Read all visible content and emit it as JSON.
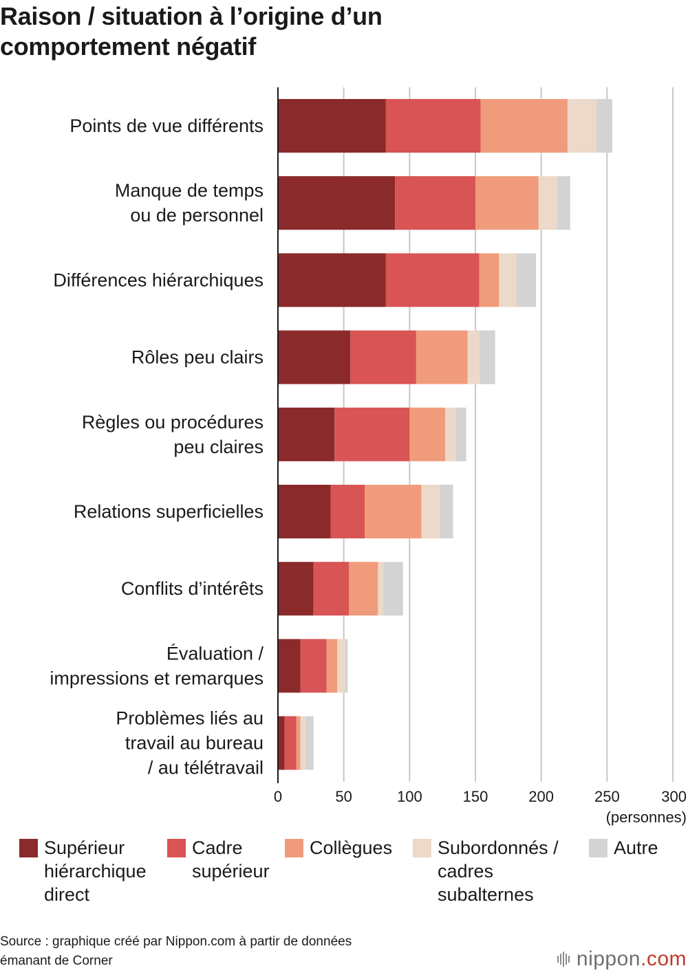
{
  "title": {
    "line1": "Raison / situation à l’origine d’un",
    "line2": "comportement négatif"
  },
  "colors": {
    "superieur_direct": "#8b2a2a",
    "cadre_superieur": "#d85455",
    "collegues": "#f09c7c",
    "subordonnes": "#ecd9ca",
    "autre": "#d3d3d3",
    "gridline": "#c8c8c8",
    "axis": "#1a1a1a"
  },
  "chart_data": {
    "type": "bar",
    "orientation": "horizontal",
    "stacked": true,
    "categories": [
      [
        "Points de vue différents"
      ],
      [
        "Manque de temps",
        "ou de personnel"
      ],
      [
        "Différences hiérarchiques"
      ],
      [
        "Rôles peu clairs"
      ],
      [
        "Règles ou procédures",
        "peu claires"
      ],
      [
        "Relations superficielles"
      ],
      [
        "Conflits d’intérêts"
      ],
      [
        "Évaluation /",
        "impressions et remarques"
      ],
      [
        "Problèmes liés au",
        "travail au bureau",
        "/ au télétravail"
      ]
    ],
    "series": [
      {
        "name": "Supérieur hiérarchique direct",
        "color_key": "superieur_direct",
        "values": [
          82,
          89,
          82,
          55,
          43,
          40,
          27,
          17,
          5
        ]
      },
      {
        "name": "Cadre supérieur",
        "color_key": "cadre_superieur",
        "values": [
          72,
          61,
          71,
          50,
          57,
          26,
          27,
          20,
          9
        ]
      },
      {
        "name": "Collègues",
        "color_key": "collegues",
        "values": [
          66,
          48,
          15,
          39,
          27,
          43,
          22,
          8,
          3
        ]
      },
      {
        "name": "Subordonnés / cadres subalternes",
        "color_key": "subordonnes",
        "values": [
          22,
          14,
          13,
          9,
          8,
          14,
          4,
          6,
          4
        ]
      },
      {
        "name": "Autre",
        "color_key": "autre",
        "values": [
          12,
          10,
          15,
          12,
          8,
          10,
          15,
          2,
          6
        ]
      }
    ],
    "xlim": [
      0,
      300
    ],
    "xticks": [
      0,
      50,
      100,
      150,
      200,
      250,
      300
    ],
    "xunit": "(personnes)",
    "grid": true,
    "legend_position": "bottom"
  },
  "legend": [
    {
      "color_key": "superieur_direct",
      "lines": [
        "Supérieur",
        "hiérarchique",
        "direct"
      ]
    },
    {
      "color_key": "cadre_superieur",
      "lines": [
        "Cadre",
        "supérieur"
      ]
    },
    {
      "color_key": "collegues",
      "lines": [
        "Collègues"
      ]
    },
    {
      "color_key": "subordonnes",
      "lines": [
        "Subordonnés /",
        "cadres",
        "subalternes"
      ]
    },
    {
      "color_key": "autre",
      "lines": [
        "Autre"
      ]
    }
  ],
  "source": {
    "line1": "Source : graphique créé par Nippon.com à partir de données",
    "line2": "émanant de Corner"
  },
  "logo": {
    "name": "nippon",
    "suffix": ".com"
  }
}
